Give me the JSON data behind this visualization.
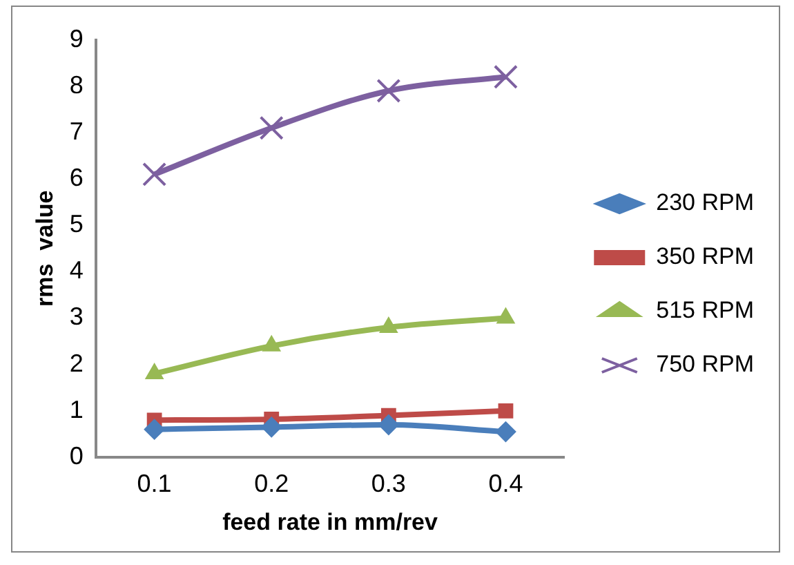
{
  "chart_data": {
    "type": "line",
    "xlabel": "feed rate in mm/rev",
    "ylabel": "rms  value",
    "categories": [
      "0.1",
      "0.2",
      "0.3",
      "0.4"
    ],
    "ylim": [
      0,
      9
    ],
    "yticks": [
      0,
      1,
      2,
      3,
      4,
      5,
      6,
      7,
      8,
      9
    ],
    "grid": false,
    "legend": "right",
    "line_style": "solid",
    "series": [
      {
        "name": "230 RPM",
        "color": "#4a7ebb",
        "marker": "diamond",
        "values": [
          0.6,
          0.65,
          0.7,
          0.55
        ]
      },
      {
        "name": "350 RPM",
        "color": "#be4b48",
        "marker": "square",
        "values": [
          0.8,
          0.82,
          0.9,
          1.0
        ]
      },
      {
        "name": "515 RPM",
        "color": "#98b954",
        "marker": "triangle",
        "values": [
          1.8,
          2.4,
          2.8,
          3.0
        ]
      },
      {
        "name": "750 RPM",
        "color": "#7d60a0",
        "marker": "cross",
        "values": [
          6.1,
          7.1,
          7.9,
          8.2
        ]
      }
    ]
  }
}
